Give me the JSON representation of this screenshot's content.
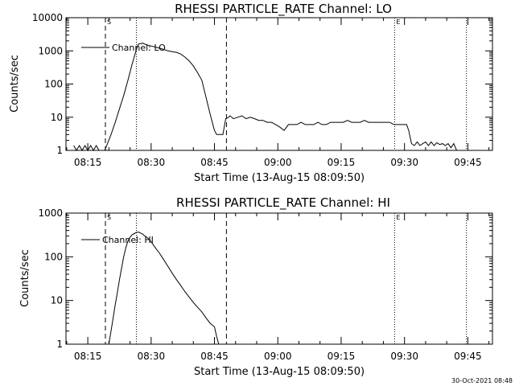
{
  "footer": {
    "date_stamp": "30-Oct-2021 08:48"
  },
  "chart_data": [
    {
      "type": "line",
      "title": "RHESSI PARTICLE_RATE Channel: LO",
      "xlabel": "Start Time (13-Aug-15 08:09:50)",
      "ylabel": "Counts/sec",
      "y_scale": "log",
      "xlim": [
        "08:09:50",
        "09:50:50"
      ],
      "ylim": [
        1,
        10000
      ],
      "y_ticks": [
        "1",
        "10",
        "100",
        "1000",
        "10000"
      ],
      "x_ticks": [
        "08:15",
        "08:30",
        "08:45",
        "09:00",
        "09:15",
        "09:30",
        "09:45"
      ],
      "legend": {
        "placement": "top-left",
        "entries": [
          "Channel: LO"
        ]
      },
      "markers": [
        {
          "label": "S",
          "x": "08:19:10",
          "style": "dashed"
        },
        {
          "label": "",
          "x": "08:26:30",
          "style": "dotted"
        },
        {
          "label": "",
          "x": "08:47:50",
          "style": "dashed"
        },
        {
          "label": "E",
          "x": "09:27:40",
          "style": "dotted"
        },
        {
          "label": "",
          "x": "09:44:40",
          "style": "dotted"
        }
      ],
      "series": [
        {
          "name": "Channel: LO",
          "x": [
            "08:11:40",
            "08:12:20",
            "08:13:00",
            "08:13:40",
            "08:14:20",
            "08:15:00",
            "08:15:40",
            "08:16:20",
            "08:17:00",
            "08:17:40",
            "08:18:20",
            "08:19:00",
            "08:19:40",
            "08:20:30",
            "08:21:30",
            "08:22:30",
            "08:23:30",
            "08:24:30",
            "08:25:30",
            "08:26:30",
            "08:27:00",
            "08:28:00",
            "08:29:00",
            "08:30:00",
            "08:31:00",
            "08:32:00",
            "08:33:00",
            "08:34:00",
            "08:35:00",
            "08:36:00",
            "08:37:00",
            "08:38:00",
            "08:39:00",
            "08:40:00",
            "08:41:00",
            "08:42:00",
            "08:43:00",
            "08:44:00",
            "08:45:00",
            "08:45:30",
            "08:46:00",
            "08:46:30",
            "08:47:00",
            "08:47:40",
            "08:48:20",
            "08:48:40",
            "08:49:30",
            "08:50:30",
            "08:51:30",
            "08:52:30",
            "08:53:30",
            "08:54:30",
            "08:55:30",
            "08:56:30",
            "08:57:30",
            "08:58:30",
            "08:59:30",
            "09:00:30",
            "09:01:30",
            "09:02:30",
            "09:03:30",
            "09:04:30",
            "09:05:30",
            "09:06:30",
            "09:07:30",
            "09:08:30",
            "09:09:30",
            "09:10:30",
            "09:11:30",
            "09:12:30",
            "09:13:30",
            "09:14:30",
            "09:15:30",
            "09:16:30",
            "09:17:30",
            "09:18:30",
            "09:19:30",
            "09:20:30",
            "09:21:30",
            "09:22:30",
            "09:23:30",
            "09:24:30",
            "09:25:30",
            "09:26:30",
            "09:27:30",
            "09:28:30",
            "09:29:30",
            "09:30:30",
            "09:31:00",
            "09:31:40",
            "09:32:20",
            "09:33:00",
            "09:33:40",
            "09:34:20",
            "09:35:00",
            "09:35:40",
            "09:36:20",
            "09:37:00",
            "09:37:40",
            "09:38:20",
            "09:39:00",
            "09:39:40",
            "09:40:20",
            "09:41:00",
            "09:41:40",
            "09:42:20",
            "09:43:00",
            "09:43:40",
            "09:44:20",
            "09:45:00"
          ],
          "y": [
            1.4,
            1,
            1.4,
            1,
            1.4,
            1,
            1.4,
            1,
            1.4,
            1,
            1,
            1,
            1.6,
            3,
            7,
            18,
            45,
            130,
            400,
            1100,
            1600,
            1700,
            1500,
            1400,
            1300,
            1200,
            1100,
            1000,
            950,
            900,
            800,
            650,
            500,
            350,
            220,
            130,
            40,
            12,
            4,
            3,
            3,
            3,
            3,
            9,
            10,
            11,
            9,
            10,
            11,
            9,
            10,
            9,
            8,
            8,
            7,
            7,
            6,
            5,
            4,
            6,
            6,
            6,
            7,
            6,
            6,
            6,
            7,
            6,
            6,
            7,
            7,
            7,
            7,
            8,
            7,
            7,
            7,
            8,
            7,
            7,
            7,
            7,
            7,
            7,
            6,
            6,
            6,
            6,
            4,
            1.6,
            1.4,
            1.8,
            1.4,
            1.6,
            1.8,
            1.4,
            1.8,
            1.4,
            1.7,
            1.5,
            1.6,
            1.4,
            1.6,
            1.2,
            1.6,
            1,
            1,
            1,
            1,
            1
          ]
        }
      ]
    },
    {
      "type": "line",
      "title": "RHESSI PARTICLE_RATE Channel: HI",
      "xlabel": "Start Time (13-Aug-15 08:09:50)",
      "ylabel": "Counts/sec",
      "y_scale": "log",
      "xlim": [
        "08:09:50",
        "09:50:50"
      ],
      "ylim": [
        1,
        1000
      ],
      "y_ticks": [
        "1",
        "10",
        "100",
        "1000"
      ],
      "x_ticks": [
        "08:15",
        "08:30",
        "08:45",
        "09:00",
        "09:15",
        "09:30",
        "09:45"
      ],
      "legend": {
        "placement": "top-left",
        "entries": [
          "Channel: HI"
        ]
      },
      "markers": [
        {
          "label": "S",
          "x": "08:19:10",
          "style": "dashed"
        },
        {
          "label": "",
          "x": "08:26:30",
          "style": "dotted"
        },
        {
          "label": "",
          "x": "08:47:50",
          "style": "dashed"
        },
        {
          "label": "E",
          "x": "09:27:40",
          "style": "dotted"
        },
        {
          "label": "",
          "x": "09:44:40",
          "style": "dotted"
        }
      ],
      "series": [
        {
          "name": "Channel: HI",
          "x": [
            "08:20:00",
            "08:20:30",
            "08:21:00",
            "08:21:30",
            "08:22:00",
            "08:22:30",
            "08:23:00",
            "08:23:30",
            "08:24:00",
            "08:24:30",
            "08:25:00",
            "08:25:30",
            "08:26:00",
            "08:26:30",
            "08:27:00",
            "08:27:30",
            "08:28:00",
            "08:28:30",
            "08:29:00",
            "08:29:30",
            "08:30:00",
            "08:31:00",
            "08:32:00",
            "08:33:00",
            "08:34:00",
            "08:35:00",
            "08:36:00",
            "08:37:00",
            "08:38:00",
            "08:39:00",
            "08:40:00",
            "08:41:00",
            "08:42:00",
            "08:43:00",
            "08:44:00",
            "08:45:00",
            "08:45:30",
            "08:46:00"
          ],
          "y": [
            1,
            2,
            4,
            8,
            15,
            30,
            55,
            100,
            160,
            230,
            280,
            320,
            340,
            360,
            370,
            350,
            330,
            300,
            280,
            250,
            220,
            160,
            120,
            85,
            60,
            42,
            30,
            22,
            16,
            12,
            9,
            7,
            5.5,
            4,
            3,
            2.5,
            1.5,
            1
          ]
        }
      ]
    }
  ]
}
